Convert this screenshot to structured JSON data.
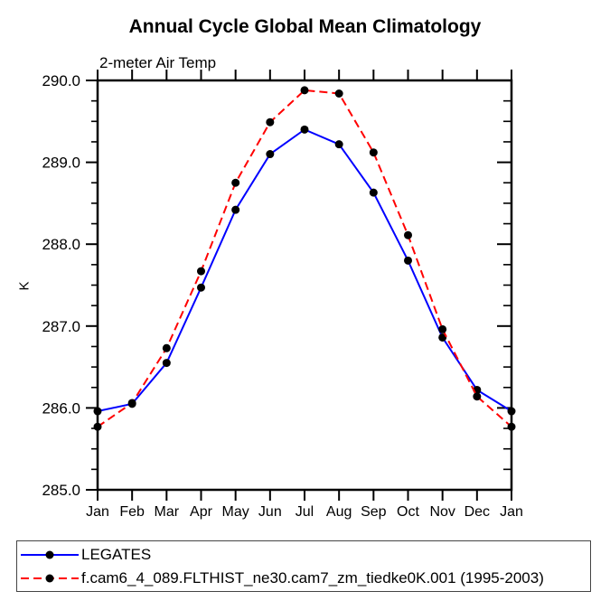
{
  "title": "Annual Cycle Global Mean Climatology",
  "subtitle": "2-meter Air Temp",
  "ylabel": "K",
  "chart_data": {
    "type": "line",
    "categories": [
      "Jan",
      "Feb",
      "Mar",
      "Apr",
      "May",
      "Jun",
      "Jul",
      "Aug",
      "Sep",
      "Oct",
      "Nov",
      "Dec",
      "Jan"
    ],
    "series": [
      {
        "name": "LEGATES",
        "color": "#0000ff",
        "dasharray": "none",
        "marker_color": "#000000",
        "values": [
          285.96,
          286.05,
          286.55,
          287.47,
          288.42,
          289.1,
          289.4,
          289.22,
          288.63,
          287.8,
          286.86,
          286.22,
          285.96
        ]
      },
      {
        "name": "f.cam6_4_089.FLTHIST_ne30.cam7_zm_tiedke0K.001 (1995-2003)",
        "color": "#ff0000",
        "dasharray": "9,5",
        "marker_color": "#000000",
        "values": [
          285.77,
          286.06,
          286.73,
          287.67,
          288.75,
          289.49,
          289.88,
          289.84,
          289.12,
          288.11,
          286.96,
          286.14,
          285.77
        ]
      }
    ],
    "xlabel": "",
    "ylabel": "K",
    "ylim": [
      285.0,
      290.0
    ],
    "ytick_major": 1.0,
    "ytick_minor": 0.25,
    "ytick_labels": [
      "285.0",
      "286.0",
      "287.0",
      "288.0",
      "289.0",
      "290.0"
    ],
    "grid": false,
    "legend_position": "bottom"
  }
}
